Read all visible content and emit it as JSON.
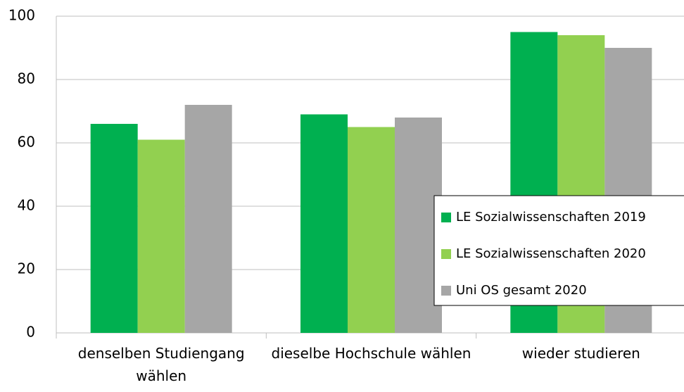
{
  "chart_data": {
    "type": "bar",
    "categories": [
      "denselben Studiengang wählen",
      "dieselbe Hochschule wählen",
      "wieder studieren"
    ],
    "series": [
      {
        "name": "LE Sozialwissenschaften 2019",
        "color": "#00b050",
        "values": [
          66,
          69,
          95
        ]
      },
      {
        "name": "LE Sozialwissenschaften 2020",
        "color": "#92d050",
        "values": [
          61,
          65,
          94
        ]
      },
      {
        "name": "Uni OS gesamt 2020",
        "color": "#a6a6a6",
        "values": [
          72,
          68,
          90
        ]
      }
    ],
    "ylim": [
      0,
      100
    ],
    "yticks": [
      0,
      20,
      40,
      60,
      80,
      100
    ],
    "grid": true,
    "legend": "right"
  }
}
